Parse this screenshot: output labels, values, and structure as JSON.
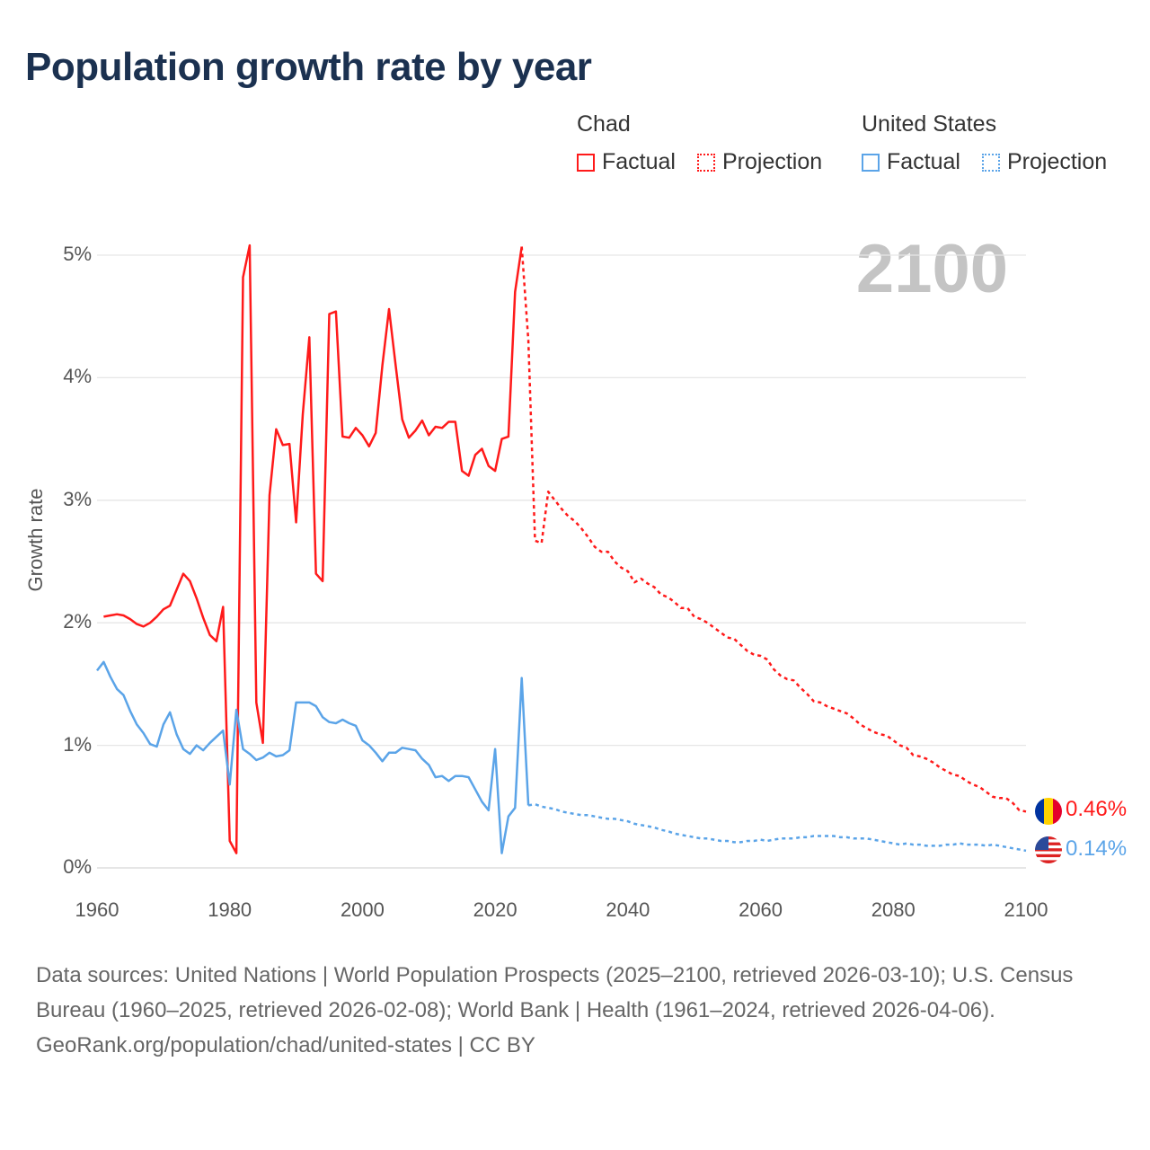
{
  "title": "Population growth rate by year",
  "legend": {
    "groups": [
      {
        "name": "Chad",
        "factual": "Factual",
        "projection": "Projection"
      },
      {
        "name": "United States",
        "factual": "Factual",
        "projection": "Projection"
      }
    ]
  },
  "year_display": "2100",
  "end_labels": {
    "chad": "0.46%",
    "us": "0.14%"
  },
  "colors": {
    "chad": "#ff1a1a",
    "us": "#5ba4e8"
  },
  "chart_data": {
    "type": "line",
    "title": "Population growth rate by year",
    "xlabel": "",
    "ylabel": "Growth rate",
    "xlim": [
      1960,
      2100
    ],
    "ylim": [
      0,
      5
    ],
    "x_ticks": [
      "1960",
      "1980",
      "2000",
      "2020",
      "2040",
      "2060",
      "2080",
      "2100"
    ],
    "y_ticks": [
      "0%",
      "1%",
      "2%",
      "3%",
      "4%",
      "5%"
    ],
    "grid": true,
    "legend_position": "top-right",
    "series": [
      {
        "name": "Chad Factual",
        "start_year": 1961,
        "style": "solid",
        "values": [
          2.05,
          2.06,
          2.07,
          2.06,
          2.03,
          1.99,
          1.97,
          2.0,
          2.05,
          2.11,
          2.14,
          2.27,
          2.4,
          2.34,
          2.2,
          2.04,
          1.9,
          1.85,
          2.13,
          0.22,
          0.12,
          4.82,
          5.08,
          1.35,
          1.02,
          3.04,
          3.58,
          3.45,
          3.46,
          2.82,
          3.7,
          4.33,
          2.4,
          2.34,
          4.52,
          4.54,
          3.52,
          3.51,
          3.59,
          3.53,
          3.44,
          3.55,
          4.1,
          4.56,
          4.1,
          3.66,
          3.51,
          3.57,
          3.65,
          3.53,
          3.6,
          3.59,
          3.64,
          3.64,
          3.24,
          3.2,
          3.37,
          3.42,
          3.28,
          3.24,
          3.5,
          3.52,
          4.7,
          5.07
        ]
      },
      {
        "name": "Chad Projection",
        "start_year": 2024,
        "style": "dotted",
        "values": [
          5.07,
          4.3,
          2.67,
          2.65,
          3.07,
          3.0,
          2.93,
          2.87,
          2.83,
          2.77,
          2.7,
          2.62,
          2.58,
          2.58,
          2.5,
          2.45,
          2.42,
          2.33,
          2.36,
          2.32,
          2.29,
          2.23,
          2.21,
          2.17,
          2.12,
          2.12,
          2.05,
          2.03,
          2.0,
          1.96,
          1.92,
          1.88,
          1.87,
          1.82,
          1.77,
          1.74,
          1.73,
          1.7,
          1.62,
          1.57,
          1.54,
          1.53,
          1.47,
          1.42,
          1.36,
          1.35,
          1.32,
          1.3,
          1.28,
          1.26,
          1.22,
          1.17,
          1.14,
          1.11,
          1.09,
          1.08,
          1.04,
          1.0,
          0.98,
          0.92,
          0.91,
          0.89,
          0.86,
          0.82,
          0.79,
          0.76,
          0.75,
          0.71,
          0.68,
          0.66,
          0.62,
          0.58,
          0.57,
          0.57,
          0.53,
          0.47,
          0.46
        ]
      },
      {
        "name": "United States Factual",
        "start_year": 1960,
        "style": "solid",
        "values": [
          1.61,
          1.68,
          1.56,
          1.46,
          1.41,
          1.28,
          1.17,
          1.1,
          1.01,
          0.99,
          1.17,
          1.27,
          1.09,
          0.97,
          0.93,
          1.0,
          0.96,
          1.02,
          1.07,
          1.12,
          0.68,
          1.29,
          0.97,
          0.93,
          0.88,
          0.9,
          0.94,
          0.91,
          0.92,
          0.96,
          1.35,
          1.35,
          1.35,
          1.32,
          1.23,
          1.19,
          1.18,
          1.21,
          1.18,
          1.16,
          1.04,
          1.0,
          0.94,
          0.87,
          0.94,
          0.94,
          0.98,
          0.97,
          0.96,
          0.89,
          0.84,
          0.74,
          0.75,
          0.71,
          0.75,
          0.75,
          0.74,
          0.64,
          0.54,
          0.47,
          0.97,
          0.12,
          0.42,
          0.49,
          1.55,
          0.51
        ]
      },
      {
        "name": "United States Projection",
        "start_year": 2025,
        "style": "dotted",
        "values": [
          0.51,
          0.52,
          0.5,
          0.49,
          0.48,
          0.46,
          0.45,
          0.44,
          0.43,
          0.43,
          0.42,
          0.41,
          0.4,
          0.4,
          0.39,
          0.38,
          0.36,
          0.35,
          0.34,
          0.33,
          0.31,
          0.3,
          0.28,
          0.27,
          0.26,
          0.25,
          0.24,
          0.24,
          0.23,
          0.22,
          0.22,
          0.21,
          0.21,
          0.22,
          0.22,
          0.23,
          0.22,
          0.23,
          0.24,
          0.24,
          0.24,
          0.25,
          0.25,
          0.26,
          0.26,
          0.26,
          0.26,
          0.25,
          0.25,
          0.24,
          0.24,
          0.24,
          0.23,
          0.22,
          0.21,
          0.2,
          0.19,
          0.2,
          0.19,
          0.19,
          0.18,
          0.18,
          0.18,
          0.19,
          0.19,
          0.2,
          0.19,
          0.19,
          0.19,
          0.18,
          0.19,
          0.18,
          0.17,
          0.16,
          0.15,
          0.14
        ]
      }
    ]
  },
  "footer": {
    "sources": "Data sources: United Nations | World Population Prospects (2025–2100, retrieved 2026-03-10); U.S. Census Bureau (1960–2025, retrieved 2026-02-08); World Bank | Health (1961–2024, retrieved 2026-04-06).",
    "link": "GeoRank.org/population/chad/united-states | CC BY"
  }
}
